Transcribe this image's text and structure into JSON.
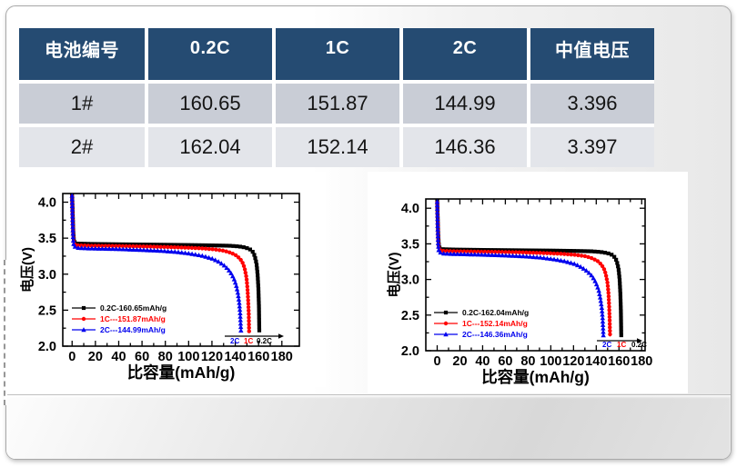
{
  "table": {
    "headers": [
      "电池编号",
      "0.2C",
      "1C",
      "2C",
      "中值电压"
    ],
    "rows": [
      [
        "1#",
        "160.65",
        "151.87",
        "144.99",
        "3.396"
      ],
      [
        "2#",
        "162.04",
        "152.14",
        "146.36",
        "3.397"
      ]
    ]
  },
  "colors": {
    "table_header_bg": "#254B72",
    "table_row1_bg": "#C9CDD6",
    "table_row2_bg": "#E3E5EA",
    "series_02c": "#000000",
    "series_1c": "#ff0000",
    "series_2c": "#0000ee"
  },
  "chart_data": [
    {
      "type": "line",
      "title": "",
      "xlabel": "比容量(mAh/g)",
      "ylabel": "电压(V)",
      "xlim": [
        -8,
        195
      ],
      "ylim": [
        2.0,
        4.12
      ],
      "xticks": [
        0,
        20,
        40,
        60,
        80,
        100,
        120,
        140,
        160,
        180
      ],
      "xtick_minor": 10,
      "yticks": [
        2.0,
        2.5,
        3.0,
        3.5,
        4.0
      ],
      "ytick_minor": 0.25,
      "grid": false,
      "legend_position": "lower-left",
      "annotation": {
        "items": [
          {
            "text": "2C",
            "color": "#0000ee"
          },
          {
            "text": "1C",
            "color": "#ff0000"
          },
          {
            "text": "0.2C",
            "color": "#000000"
          }
        ]
      },
      "series": [
        {
          "name": "0.2C-160.65mAh/g",
          "color": "#000000",
          "marker": "square",
          "x": [
            0,
            0.5,
            1.0,
            1.6,
            4.8,
            16.1,
            40.2,
            72.3,
            99.6,
            120.5,
            135.0,
            143.0,
            148.6,
            152.6,
            155.0,
            156.6,
            158.2,
            159.2,
            159.9,
            160.3,
            160.65
          ],
          "y": [
            4.11,
            3.85,
            3.6,
            3.45,
            3.425,
            3.42,
            3.415,
            3.41,
            3.405,
            3.4,
            3.395,
            3.385,
            3.37,
            3.345,
            3.31,
            3.26,
            3.15,
            3.0,
            2.8,
            2.55,
            2.2
          ]
        },
        {
          "name": "1C---151.87mAh/g",
          "color": "#ff0000",
          "marker": "circle",
          "x": [
            0,
            0.46,
            0.91,
            1.52,
            4.6,
            15.2,
            38.0,
            68.3,
            91.1,
            109.3,
            121.5,
            130.6,
            136.7,
            141.2,
            144.3,
            146.6,
            148.1,
            149.6,
            150.5,
            151.1,
            151.6,
            151.87
          ],
          "y": [
            4.08,
            3.8,
            3.55,
            3.42,
            3.4,
            3.395,
            3.39,
            3.382,
            3.372,
            3.36,
            3.345,
            3.325,
            3.295,
            3.255,
            3.21,
            3.15,
            3.08,
            2.95,
            2.8,
            2.62,
            2.45,
            2.2
          ]
        },
        {
          "name": "2C---144.99mAh/g",
          "color": "#0000ee",
          "marker": "triangle",
          "x": [
            0,
            0.43,
            0.87,
            1.45,
            4.3,
            14.5,
            36.2,
            58.0,
            75.4,
            89.9,
            101.5,
            111.6,
            120.3,
            126.1,
            130.5,
            134.1,
            137.0,
            139.2,
            140.9,
            142.4,
            143.5,
            144.2,
            144.99
          ],
          "y": [
            4.09,
            3.75,
            3.5,
            3.39,
            3.365,
            3.358,
            3.35,
            3.338,
            3.325,
            3.308,
            3.285,
            3.255,
            3.215,
            3.17,
            3.12,
            3.065,
            3.0,
            2.925,
            2.84,
            2.73,
            2.6,
            2.46,
            2.2
          ]
        }
      ]
    },
    {
      "type": "line",
      "title": "",
      "xlabel": "比容量(mAh/g)",
      "ylabel": "电压(V)",
      "xlim": [
        -10,
        183
      ],
      "ylim": [
        2.0,
        4.13
      ],
      "xticks": [
        0,
        20,
        40,
        60,
        80,
        100,
        120,
        140,
        160,
        180
      ],
      "xtick_minor": 10,
      "yticks": [
        2.0,
        2.5,
        3.0,
        3.5,
        4.0
      ],
      "ytick_minor": 0.25,
      "grid": false,
      "legend_position": "lower-left",
      "annotation": {
        "items": [
          {
            "text": "2C",
            "color": "#0000ee"
          },
          {
            "text": "1C",
            "color": "#ff0000"
          },
          {
            "text": "0.2C",
            "color": "#000000"
          }
        ]
      },
      "series": [
        {
          "name": "0.2C-162.04mAh/g",
          "color": "#000000",
          "marker": "square",
          "x": [
            0,
            0.5,
            1.0,
            1.6,
            4.9,
            16.2,
            40.5,
            72.9,
            100.5,
            121.5,
            136.1,
            144.2,
            149.9,
            153.9,
            156.4,
            158.0,
            159.6,
            160.6,
            161.2,
            161.7,
            162.04
          ],
          "y": [
            4.12,
            3.85,
            3.6,
            3.45,
            3.425,
            3.42,
            3.415,
            3.41,
            3.405,
            3.4,
            3.395,
            3.385,
            3.37,
            3.345,
            3.31,
            3.26,
            3.15,
            3.0,
            2.8,
            2.55,
            2.2
          ]
        },
        {
          "name": "1C---152.14mAh/g",
          "color": "#ff0000",
          "marker": "circle",
          "x": [
            0,
            0.46,
            0.91,
            1.52,
            4.6,
            15.2,
            38.0,
            68.5,
            91.3,
            109.5,
            121.7,
            130.8,
            136.9,
            141.5,
            144.5,
            146.8,
            148.3,
            149.9,
            150.8,
            151.4,
            151.8,
            152.14
          ],
          "y": [
            4.08,
            3.8,
            3.55,
            3.42,
            3.4,
            3.395,
            3.39,
            3.382,
            3.372,
            3.36,
            3.345,
            3.325,
            3.295,
            3.255,
            3.21,
            3.15,
            3.08,
            2.95,
            2.8,
            2.62,
            2.45,
            2.2
          ]
        },
        {
          "name": "2C---146.36mAh/g",
          "color": "#0000ee",
          "marker": "triangle",
          "x": [
            0,
            0.44,
            0.88,
            1.46,
            4.4,
            14.6,
            36.6,
            58.5,
            76.1,
            90.7,
            102.5,
            112.7,
            121.5,
            127.3,
            131.7,
            135.4,
            138.3,
            140.5,
            142.3,
            143.7,
            144.9,
            145.6,
            146.36
          ],
          "y": [
            4.09,
            3.75,
            3.5,
            3.39,
            3.365,
            3.358,
            3.35,
            3.338,
            3.325,
            3.308,
            3.285,
            3.255,
            3.215,
            3.17,
            3.12,
            3.065,
            3.0,
            2.925,
            2.84,
            2.73,
            2.6,
            2.46,
            2.2
          ]
        }
      ]
    }
  ]
}
